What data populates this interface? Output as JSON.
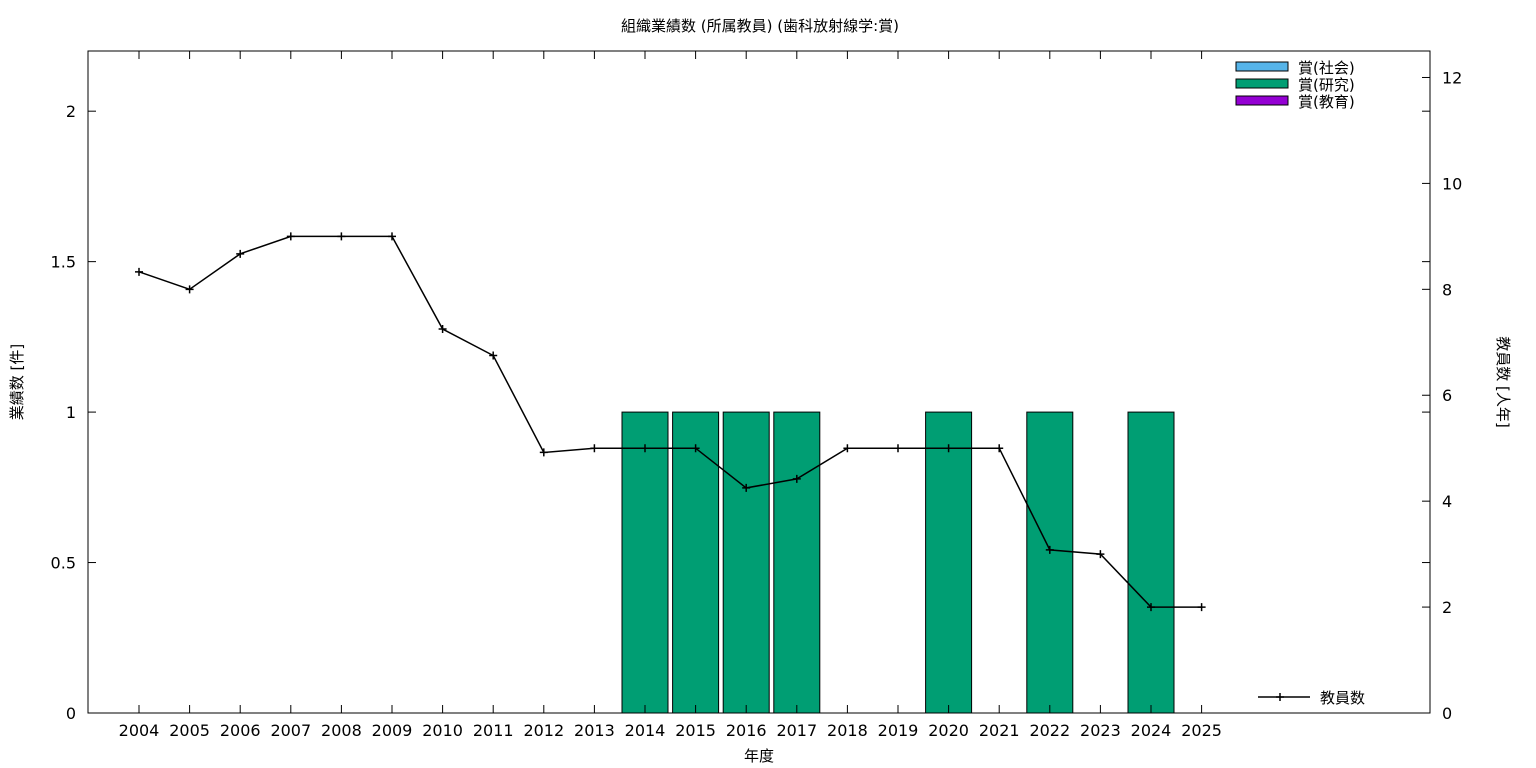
{
  "chart_data": {
    "type": "bar",
    "title": "組織業績数 (所属教員) (歯科放射線学:賞)",
    "xlabel": "年度",
    "ylabel": "業績数 [件]",
    "y2label": "教員数 [人年]",
    "categories": [
      "2004",
      "2005",
      "2006",
      "2007",
      "2008",
      "2009",
      "2010",
      "2011",
      "2012",
      "2013",
      "2014",
      "2015",
      "2016",
      "2017",
      "2018",
      "2019",
      "2020",
      "2021",
      "2022",
      "2023",
      "2024",
      "2025"
    ],
    "ylim": [
      0,
      2.2
    ],
    "y_ticks": [
      0,
      0.5,
      1,
      1.5,
      2
    ],
    "y_tick_labels": [
      "0",
      "0.5",
      "1",
      "1.5",
      "2"
    ],
    "y2lim": [
      0,
      12.5
    ],
    "y2_ticks": [
      0,
      2,
      4,
      6,
      8,
      10,
      12
    ],
    "series": [
      {
        "name": "賞(社会)",
        "color": "#56b4e9",
        "values": [
          0,
          0,
          0,
          0,
          0,
          0,
          0,
          0,
          0,
          0,
          0,
          0,
          0,
          0,
          0,
          0,
          0,
          0,
          0,
          0,
          0,
          0
        ]
      },
      {
        "name": "賞(研究)",
        "color": "#009e73",
        "values": [
          0,
          0,
          0,
          0,
          0,
          0,
          0,
          0,
          0,
          0,
          1,
          1,
          1,
          1,
          0,
          0,
          1,
          0,
          1,
          0,
          1,
          0
        ]
      },
      {
        "name": "賞(教育)",
        "color": "#9400d3",
        "values": [
          0,
          0,
          0,
          0,
          0,
          0,
          0,
          0,
          0,
          0,
          0,
          0,
          0,
          0,
          0,
          0,
          0,
          0,
          0,
          0,
          0,
          0
        ]
      }
    ],
    "line_series": {
      "name": "教員数",
      "axis": "y2",
      "color": "#000000",
      "values": [
        8.33,
        8.0,
        8.67,
        9.0,
        9.0,
        9.0,
        7.25,
        6.75,
        4.92,
        5.0,
        5.0,
        5.0,
        4.25,
        4.42,
        5.0,
        5.0,
        5.0,
        5.0,
        3.08,
        3.0,
        2.0,
        2.0
      ]
    },
    "grid": false,
    "legend_bars_position": "top-right",
    "legend_line_position": "bottom-right"
  }
}
